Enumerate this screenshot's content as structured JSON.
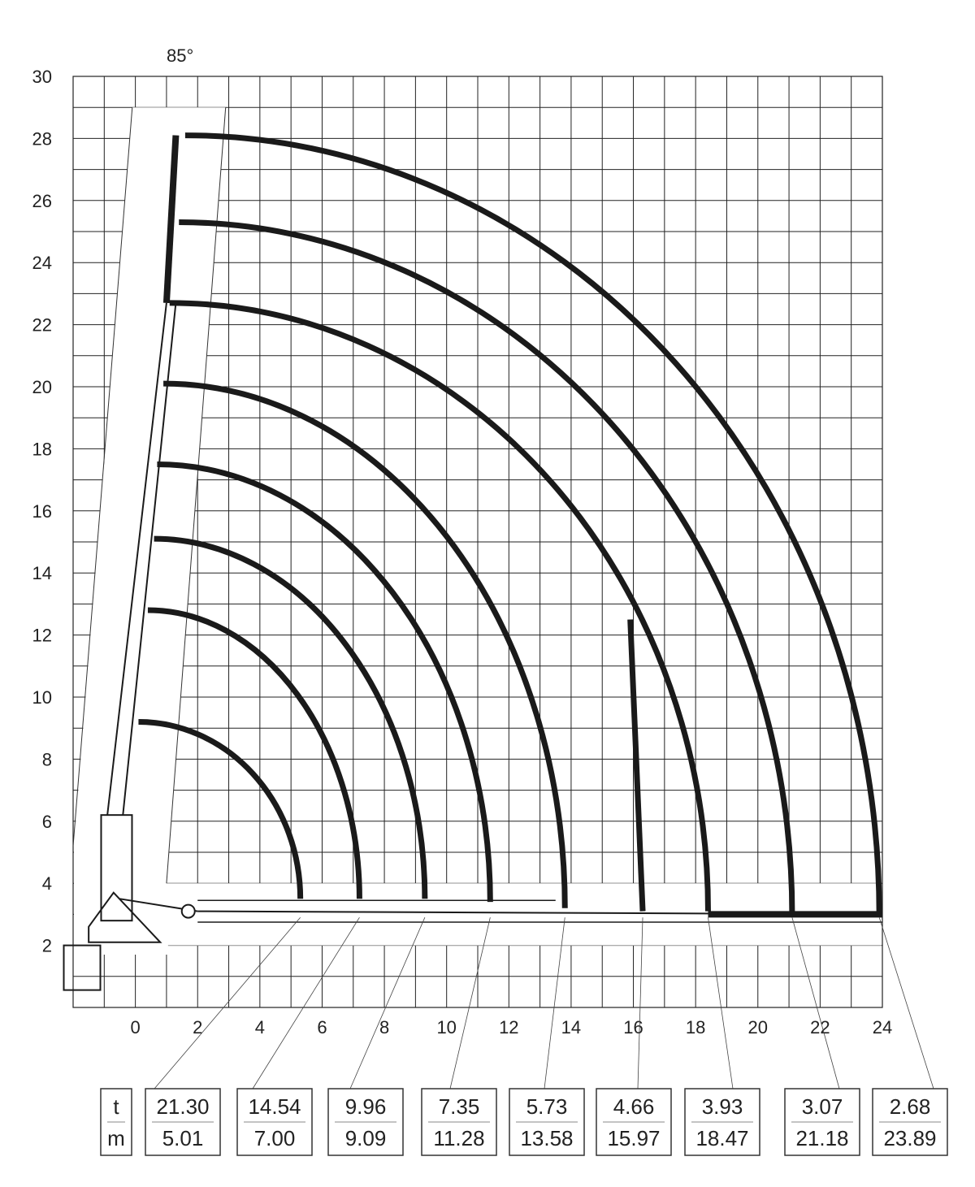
{
  "chart_data": {
    "type": "line",
    "title": "",
    "xlabel": "",
    "ylabel": "",
    "xlim": [
      -2,
      24
    ],
    "ylim": [
      0,
      30
    ],
    "grid": true,
    "grid_step": 1,
    "x_ticks": [
      "0",
      "2",
      "4",
      "6",
      "8",
      "10",
      "12",
      "14",
      "16",
      "18",
      "20",
      "22",
      "24"
    ],
    "y_ticks": [
      "2",
      "4",
      "6",
      "8",
      "10",
      "12",
      "14",
      "16",
      "18",
      "20",
      "22",
      "24",
      "26",
      "28",
      "30"
    ],
    "angle_label": "85°",
    "line_color": "#1a1a1a",
    "working_range_curves": [
      {
        "top": [
          0.1,
          9.2
        ],
        "end": [
          5.3,
          3.5
        ]
      },
      {
        "top": [
          0.4,
          12.8
        ],
        "end": [
          7.2,
          3.5
        ]
      },
      {
        "top": [
          0.6,
          15.1
        ],
        "end": [
          9.3,
          3.5
        ]
      },
      {
        "top": [
          0.7,
          17.5
        ],
        "end": [
          11.4,
          3.4
        ]
      },
      {
        "top": [
          0.9,
          20.1
        ],
        "end": [
          13.8,
          3.2
        ]
      },
      {
        "top": [
          1.1,
          22.7
        ],
        "end": [
          18.4,
          3.1
        ]
      },
      {
        "top": [
          1.4,
          25.3
        ],
        "end": [
          21.1,
          3.0
        ]
      },
      {
        "top": [
          1.6,
          28.1
        ],
        "end": [
          23.9,
          3.0
        ]
      }
    ],
    "limit_line": {
      "from": [
        15.9,
        12.5
      ],
      "to": [
        16.3,
        3.1
      ]
    },
    "load_table": {
      "header": {
        "load_unit": "t",
        "reach_unit": "m"
      },
      "columns": [
        {
          "load": "21.30",
          "reach": "5.01"
        },
        {
          "load": "14.54",
          "reach": "7.00"
        },
        {
          "load": "9.96",
          "reach": "9.09"
        },
        {
          "load": "7.35",
          "reach": "11.28"
        },
        {
          "load": "5.73",
          "reach": "13.58"
        },
        {
          "load": "4.66",
          "reach": "15.97"
        },
        {
          "load": "3.93",
          "reach": "18.47"
        },
        {
          "load": "3.07",
          "reach": "21.18"
        },
        {
          "load": "2.68",
          "reach": "23.89"
        }
      ]
    }
  }
}
